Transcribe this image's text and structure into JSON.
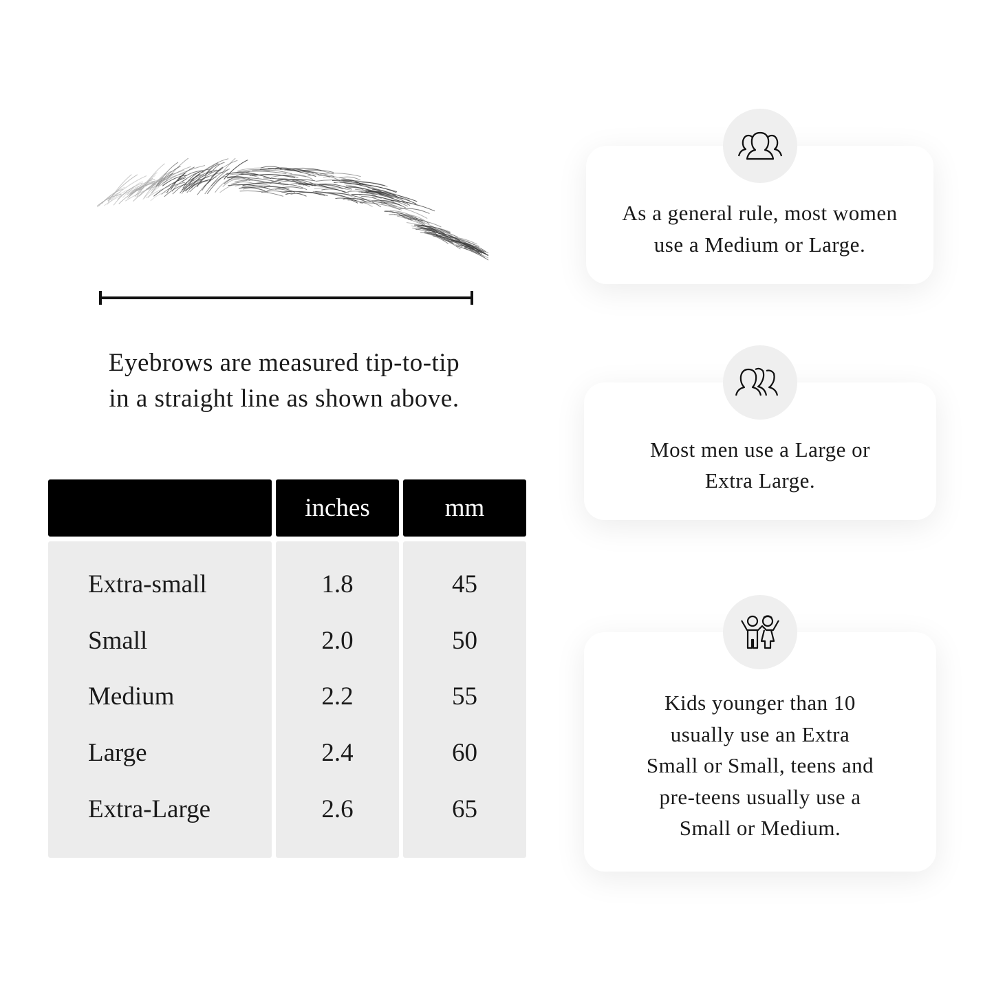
{
  "measure": {
    "caption_line1": "Eyebrows are measured tip-to-tip",
    "caption_line2": "in a straight line as shown above."
  },
  "size_table": {
    "headers": [
      "",
      "inches",
      "mm"
    ],
    "rows": [
      {
        "size": "Extra-small",
        "inches": "1.8",
        "mm": "45"
      },
      {
        "size": "Small",
        "inches": "2.0",
        "mm": "50"
      },
      {
        "size": "Medium",
        "inches": "2.2",
        "mm": "55"
      },
      {
        "size": "Large",
        "inches": "2.4",
        "mm": "60"
      },
      {
        "size": "Extra-Large",
        "inches": "2.6",
        "mm": "65"
      }
    ]
  },
  "tips": [
    {
      "icon": "women-group-icon",
      "lines": [
        "As a general rule, most women",
        "use a Medium or Large."
      ]
    },
    {
      "icon": "men-group-icon",
      "lines": [
        "Most men use a Large or",
        "Extra Large."
      ]
    },
    {
      "icon": "kids-icon",
      "lines": [
        "Kids younger than 10",
        "usually use an Extra",
        "Small or Small, teens and",
        "pre-teens usually use a",
        "Small or Medium."
      ]
    }
  ],
  "colors": {
    "header_bg": "#000000",
    "body_bg": "#ececec",
    "icon_circle": "#efefef"
  }
}
